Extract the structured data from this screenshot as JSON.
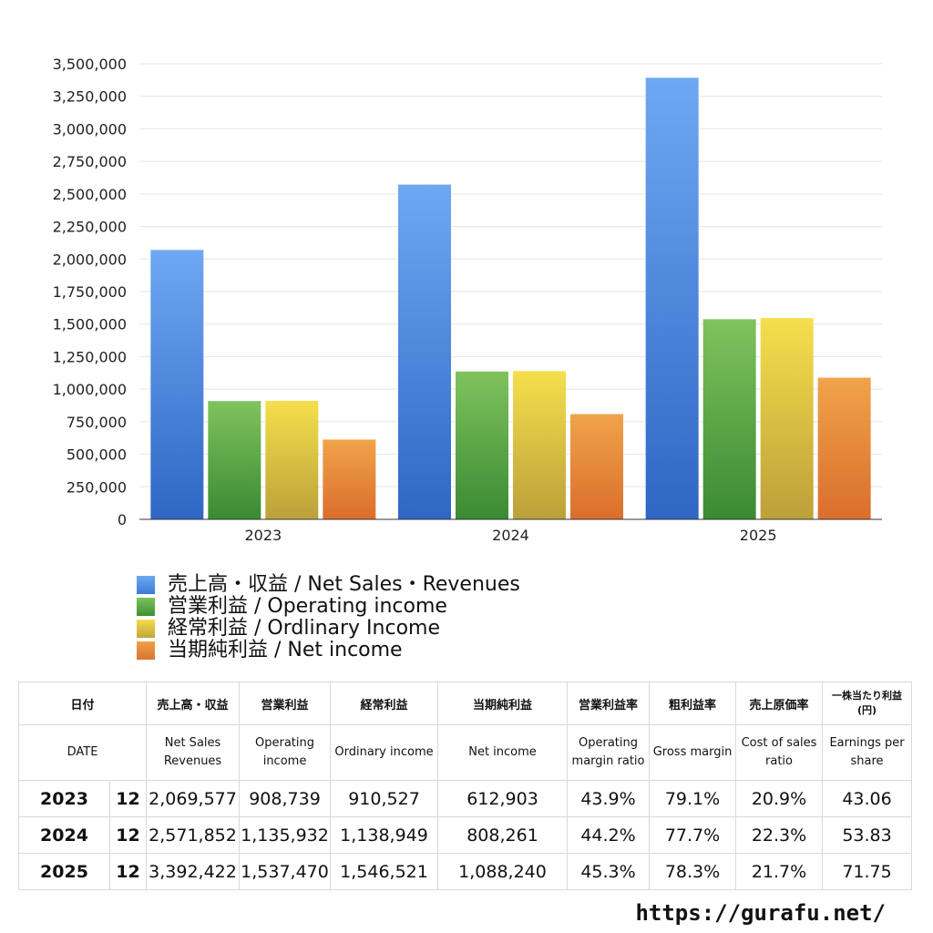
{
  "chart_data": {
    "type": "bar",
    "categories": [
      "2023",
      "2024",
      "2025"
    ],
    "series": [
      {
        "name": "売上高・収益 / Net Sales・Revenues",
        "values": [
          2069577,
          2571852,
          3392422
        ]
      },
      {
        "name": "営業利益 / Operating income",
        "values": [
          908739,
          1135932,
          1537470
        ]
      },
      {
        "name": "経常利益 / Ordlinary Income",
        "values": [
          910527,
          1138949,
          1546521
        ]
      },
      {
        "name": "当期純利益 / Net income",
        "values": [
          612903,
          808261,
          1088240
        ]
      }
    ],
    "y_ticks": [
      "0",
      "250,000",
      "500,000",
      "750,000",
      "1,000,000",
      "1,250,000",
      "1,500,000",
      "1,750,000",
      "2,000,000",
      "2,250,000",
      "2,500,000",
      "2,750,000",
      "3,000,000",
      "3,250,000",
      "3,500,000"
    ],
    "ylim": [
      0,
      3500000
    ],
    "grid": true,
    "legend_position": "bottom",
    "colors": [
      "#4f8fe6",
      "#5ca845",
      "#e2c440",
      "#e6883a"
    ]
  },
  "table": {
    "headers_ja": [
      "日付",
      "売上高・収益",
      "営業利益",
      "経常利益",
      "当期純利益",
      "営業利益率",
      "粗利益率",
      "売上原価率",
      "一株当たり利益(円)"
    ],
    "headers_en": [
      "DATE",
      "Net Sales Revenues",
      "Operating income",
      "Ordinary income",
      "Net income",
      "Operating margin ratio",
      "Gross margin",
      "Cost of sales ratio",
      "Earnings per share"
    ],
    "rows": [
      {
        "year": "2023",
        "month": "12",
        "sales": "2,069,577",
        "operating": "908,739",
        "ordinary": "910,527",
        "net": "612,903",
        "op_margin": "43.9%",
        "gross_margin": "79.1%",
        "cost_ratio": "20.9%",
        "eps": "43.06"
      },
      {
        "year": "2024",
        "month": "12",
        "sales": "2,571,852",
        "operating": "1,135,932",
        "ordinary": "1,138,949",
        "net": "808,261",
        "op_margin": "44.2%",
        "gross_margin": "77.7%",
        "cost_ratio": "22.3%",
        "eps": "53.83"
      },
      {
        "year": "2025",
        "month": "12",
        "sales": "3,392,422",
        "operating": "1,537,470",
        "ordinary": "1,546,521",
        "net": "1,088,240",
        "op_margin": "45.3%",
        "gross_margin": "78.3%",
        "cost_ratio": "21.7%",
        "eps": "71.75"
      }
    ]
  },
  "credit": "https://gurafu.net/"
}
